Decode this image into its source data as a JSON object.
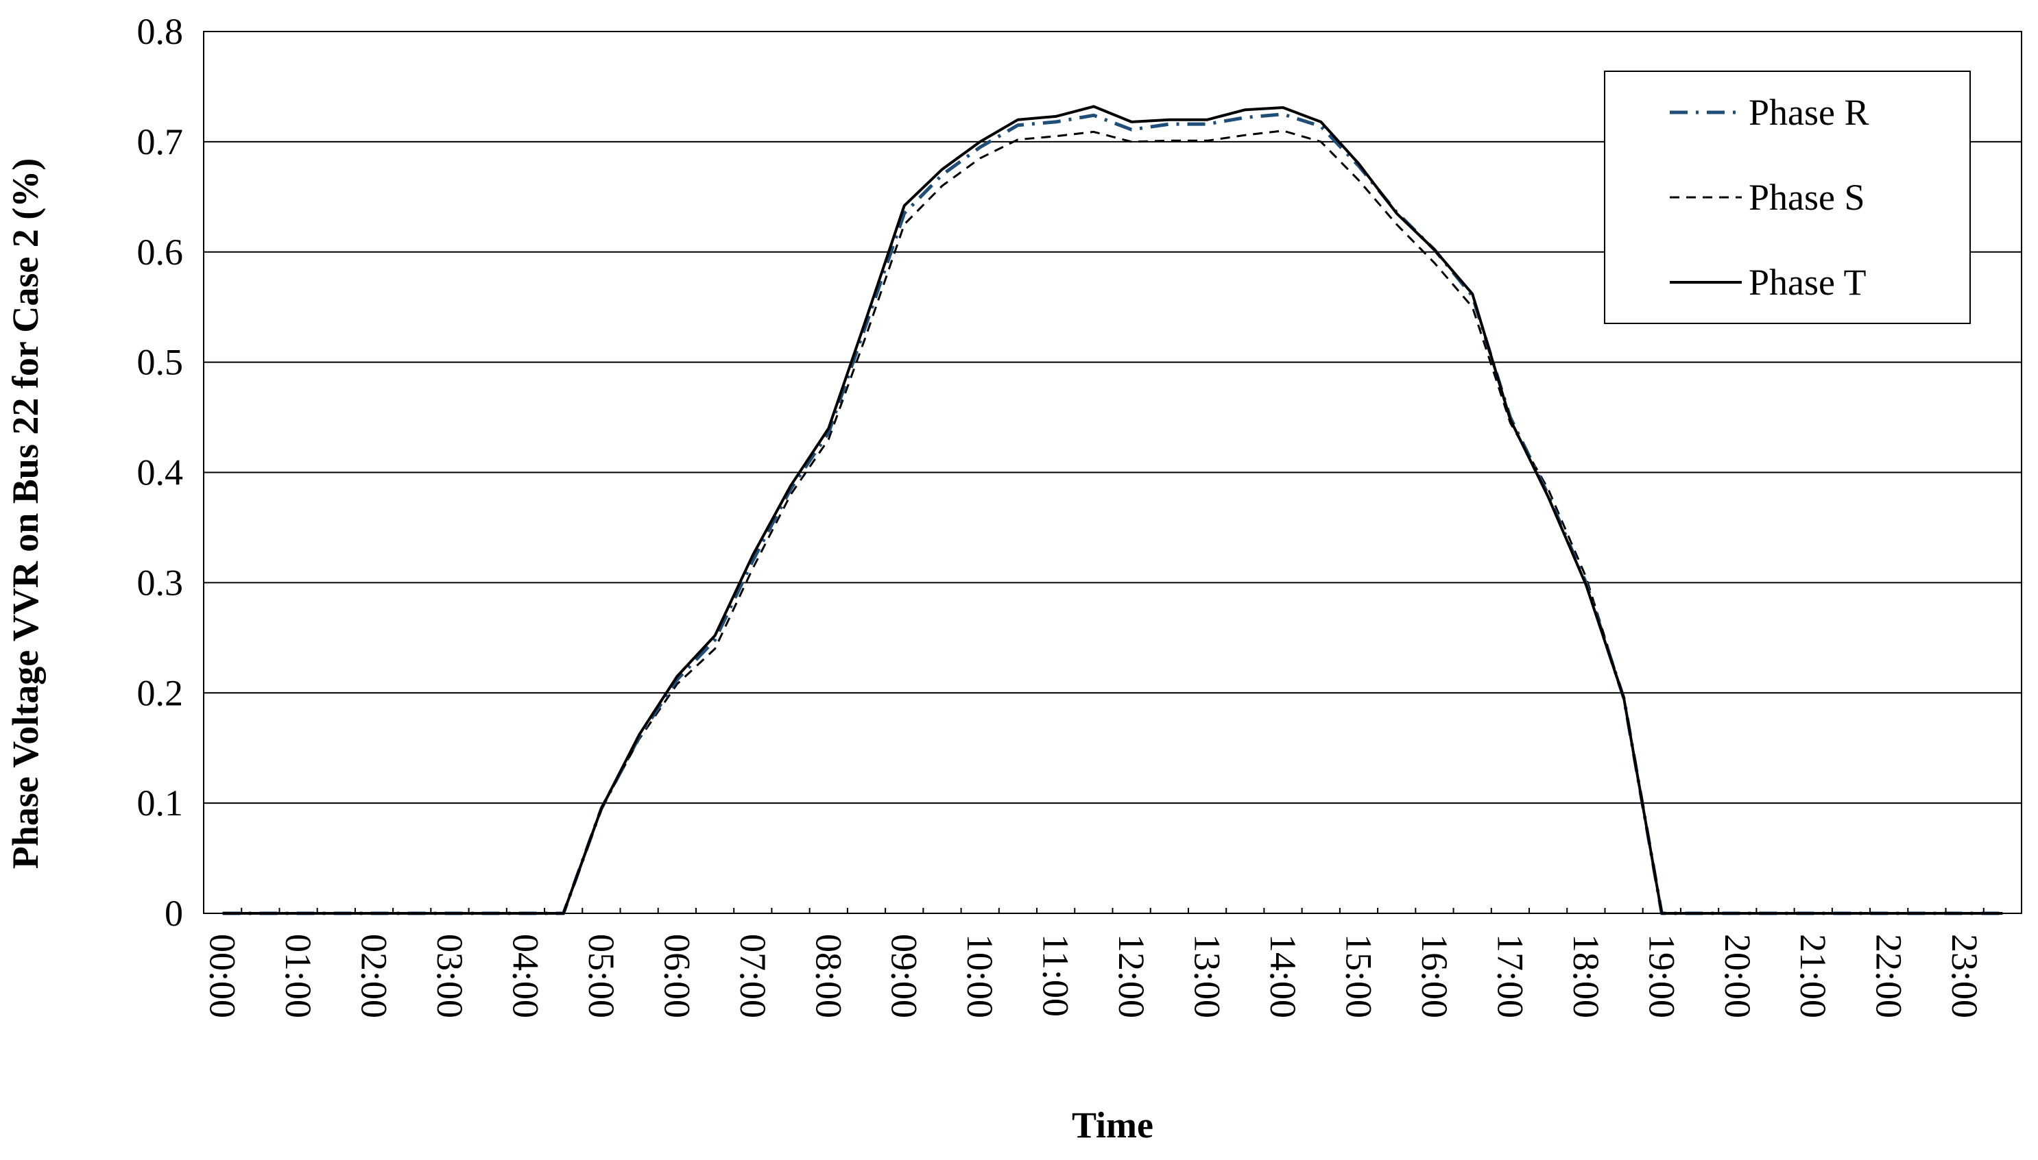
{
  "chart_data": {
    "type": "line",
    "title": "",
    "xlabel": "Time",
    "ylabel": "Phase Voltage VVR on  Bus 22 for Case 2 (%)",
    "ylim": [
      0,
      0.8
    ],
    "yticks": [
      "0",
      "0.1",
      "0.2",
      "0.3",
      "0.4",
      "0.5",
      "0.6",
      "0.7",
      "0.8"
    ],
    "grid": "horizontal",
    "legend_position": "top-right",
    "xticks": [
      "00:00",
      "01:00",
      "02:00",
      "03:00",
      "04:00",
      "05:00",
      "06:00",
      "07:00",
      "08:00",
      "09:00",
      "10:00",
      "11:00",
      "12:00",
      "13:00",
      "14:00",
      "15:00",
      "16:00",
      "17:00",
      "18:00",
      "19:00",
      "20:00",
      "21:00",
      "22:00",
      "23:00"
    ],
    "x": [
      "00:00",
      "00:30",
      "01:00",
      "01:30",
      "02:00",
      "02:30",
      "03:00",
      "03:30",
      "04:00",
      "04:30",
      "05:00",
      "05:30",
      "06:00",
      "06:30",
      "07:00",
      "07:30",
      "08:00",
      "08:30",
      "09:00",
      "09:30",
      "10:00",
      "10:30",
      "11:00",
      "11:30",
      "12:00",
      "12:30",
      "13:00",
      "13:30",
      "14:00",
      "14:30",
      "15:00",
      "15:30",
      "16:00",
      "16:30",
      "17:00",
      "17:30",
      "18:00",
      "18:30",
      "19:00",
      "19:30",
      "20:00",
      "20:30",
      "21:00",
      "21:30",
      "22:00",
      "22:30",
      "23:00",
      "23:30"
    ],
    "series": [
      {
        "name": "Phase R",
        "color": "#1f4e79",
        "style": "dash-dot",
        "values": [
          0,
          0,
          0,
          0,
          0,
          0,
          0,
          0,
          0,
          0,
          0.095,
          0.16,
          0.212,
          0.248,
          0.32,
          0.385,
          0.436,
          0.535,
          0.635,
          0.67,
          0.695,
          0.715,
          0.718,
          0.724,
          0.711,
          0.716,
          0.716,
          0.722,
          0.725,
          0.714,
          0.678,
          0.636,
          0.602,
          0.56,
          0.45,
          0.38,
          0.3,
          0.195,
          0,
          0,
          0,
          0,
          0,
          0,
          0,
          0,
          0,
          0
        ]
      },
      {
        "name": "Phase S",
        "color": "#000000",
        "style": "dash",
        "values": [
          0,
          0,
          0,
          0,
          0,
          0,
          0,
          0,
          0,
          0,
          0.095,
          0.158,
          0.208,
          0.24,
          0.313,
          0.38,
          0.43,
          0.525,
          0.625,
          0.66,
          0.685,
          0.702,
          0.705,
          0.709,
          0.7,
          0.701,
          0.701,
          0.706,
          0.71,
          0.7,
          0.665,
          0.625,
          0.59,
          0.55,
          0.445,
          0.385,
          0.305,
          0.195,
          0,
          0,
          0,
          0,
          0,
          0,
          0,
          0,
          0,
          0
        ]
      },
      {
        "name": "Phase T",
        "color": "#000000",
        "style": "solid",
        "values": [
          0,
          0,
          0,
          0,
          0,
          0,
          0,
          0,
          0,
          0,
          0.095,
          0.162,
          0.215,
          0.252,
          0.325,
          0.388,
          0.44,
          0.54,
          0.642,
          0.675,
          0.7,
          0.72,
          0.723,
          0.732,
          0.718,
          0.72,
          0.72,
          0.729,
          0.731,
          0.718,
          0.68,
          0.635,
          0.602,
          0.562,
          0.448,
          0.378,
          0.298,
          0.195,
          0,
          0,
          0,
          0,
          0,
          0,
          0,
          0,
          0,
          0
        ]
      }
    ]
  }
}
